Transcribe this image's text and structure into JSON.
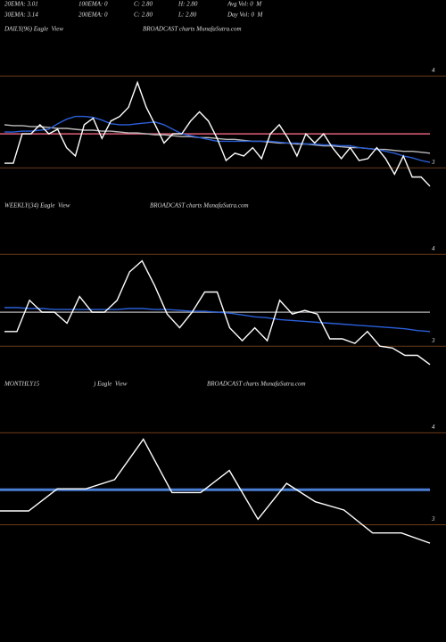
{
  "header": {
    "row1": [
      "20EMA: 3.01",
      "100EMA: 0",
      "C: 2.80",
      "H: 2.80",
      "Avg Vol: 0  M"
    ],
    "row2": [
      "30EMA: 3.14",
      "200EMA: 0",
      "C: 2.80",
      "L: 2.80",
      "Day Vol: 0  M"
    ]
  },
  "chart_data": [
    {
      "type": "line",
      "title": "DAILY(96) Eagle  View",
      "subtitle": "BROADCAST charts MunafaSutra.com",
      "ylim": [
        2.74,
        4.44
      ],
      "yticks": [
        4,
        3
      ],
      "grid": true,
      "grid_color": "#6b3a1a",
      "levels": [
        {
          "value": 3.37,
          "color": "#e0607a"
        }
      ],
      "series": [
        {
          "color": "#bbbbbb",
          "values": [
            3.47,
            3.46,
            3.46,
            3.45,
            3.45,
            3.44,
            3.43,
            3.43,
            3.42,
            3.41,
            3.41,
            3.4,
            3.4,
            3.39,
            3.38,
            3.38,
            3.37,
            3.36,
            3.36,
            3.35,
            3.34,
            3.34,
            3.33,
            3.33,
            3.32,
            3.31,
            3.31,
            3.3,
            3.29,
            3.29,
            3.28,
            3.27,
            3.27,
            3.26,
            3.26,
            3.25,
            3.24,
            3.24,
            3.23,
            3.22,
            3.22,
            3.21,
            3.2,
            3.2,
            3.19,
            3.18,
            3.18,
            3.17,
            3.16
          ]
        },
        {
          "color": "#2a5fd8",
          "values": [
            3.39,
            3.39,
            3.4,
            3.4,
            3.41,
            3.42,
            3.48,
            3.53,
            3.56,
            3.56,
            3.55,
            3.52,
            3.48,
            3.47,
            3.47,
            3.48,
            3.49,
            3.5,
            3.47,
            3.42,
            3.37,
            3.35,
            3.33,
            3.31,
            3.29,
            3.29,
            3.29,
            3.29,
            3.29,
            3.29,
            3.29,
            3.28,
            3.27,
            3.27,
            3.26,
            3.26,
            3.25,
            3.25,
            3.24,
            3.24,
            3.22,
            3.21,
            3.2,
            3.18,
            3.16,
            3.13,
            3.11,
            3.08,
            3.06
          ]
        },
        {
          "color": "#ffffff",
          "values": [
            3.05,
            3.05,
            3.37,
            3.37,
            3.47,
            3.37,
            3.42,
            3.22,
            3.13,
            3.47,
            3.54,
            3.32,
            3.51,
            3.56,
            3.66,
            3.93,
            3.66,
            3.47,
            3.27,
            3.37,
            3.37,
            3.51,
            3.61,
            3.51,
            3.32,
            3.08,
            3.16,
            3.13,
            3.22,
            3.1,
            3.37,
            3.47,
            3.32,
            3.13,
            3.37,
            3.27,
            3.37,
            3.22,
            3.1,
            3.22,
            3.08,
            3.1,
            3.22,
            3.1,
            2.93,
            3.13,
            2.9,
            2.9,
            2.8
          ]
        }
      ]
    },
    {
      "type": "line",
      "title": "WEEKLY(34) Eagle  View",
      "subtitle": "BROADCAST charts MunafaSutra.com",
      "ylim": [
        2.74,
        4.44
      ],
      "yticks": [
        4,
        3
      ],
      "grid": true,
      "grid_color": "#6b3a1a",
      "levels": [
        {
          "value": 3.37,
          "color": "#999999"
        }
      ],
      "series": [
        {
          "color": "#2a5fd8",
          "values": [
            3.42,
            3.42,
            3.41,
            3.41,
            3.4,
            3.4,
            3.4,
            3.4,
            3.4,
            3.4,
            3.41,
            3.41,
            3.4,
            3.4,
            3.39,
            3.38,
            3.38,
            3.37,
            3.36,
            3.34,
            3.32,
            3.31,
            3.29,
            3.28,
            3.27,
            3.26,
            3.25,
            3.24,
            3.23,
            3.22,
            3.21,
            3.2,
            3.19,
            3.17,
            3.16
          ]
        },
        {
          "color": "#ffffff",
          "values": [
            3.16,
            3.16,
            3.5,
            3.37,
            3.37,
            3.25,
            3.54,
            3.37,
            3.37,
            3.5,
            3.81,
            3.93,
            3.66,
            3.35,
            3.2,
            3.37,
            3.59,
            3.59,
            3.2,
            3.06,
            3.2,
            3.06,
            3.5,
            3.35,
            3.39,
            3.35,
            3.08,
            3.08,
            3.03,
            3.16,
            3.0,
            2.98,
            2.9,
            2.9,
            2.8
          ]
        }
      ]
    },
    {
      "type": "line",
      "title": "MONTHLY15",
      "note": ") Eagle  View",
      "subtitle": "BROADCAST charts MunafaSutra.com",
      "ylim": [
        2.5,
        4.44
      ],
      "yticks": [
        4,
        3
      ],
      "grid": true,
      "grid_color": "#6b3a1a",
      "levels": [
        {
          "value": 3.38,
          "color": "#4a7fd6"
        }
      ],
      "series": [
        {
          "color": "#ffffff",
          "values": [
            3.15,
            3.15,
            3.39,
            3.39,
            3.49,
            3.93,
            3.35,
            3.35,
            3.59,
            3.06,
            3.45,
            3.25,
            3.16,
            2.91,
            2.91,
            2.8
          ]
        }
      ]
    }
  ]
}
